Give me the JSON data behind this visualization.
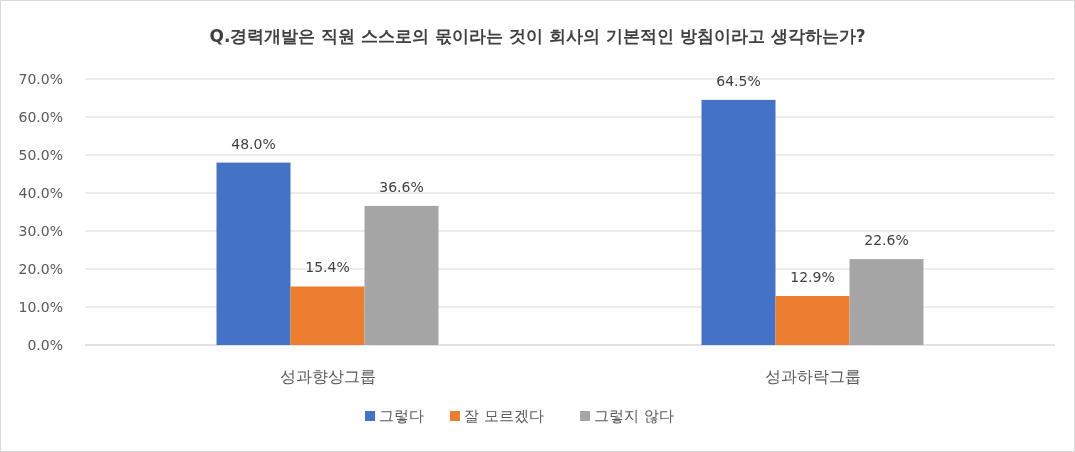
{
  "chart_data": {
    "type": "bar",
    "title": "Q.경력개발은 직원 스스로의 몫이라는 것이 회사의 기본적인 방침이라고 생각하는가?",
    "categories": [
      "성과향상그룹",
      "성과하락그룹"
    ],
    "series": [
      {
        "name": "그렇다",
        "color": "#4472c4",
        "values": [
          48.0,
          64.5
        ],
        "value_labels": [
          "48.0%",
          "64.5%"
        ]
      },
      {
        "name": "잘 모르겠다",
        "color": "#ed7d31",
        "values": [
          15.4,
          12.9
        ],
        "value_labels": [
          "15.4%",
          "12.9%"
        ]
      },
      {
        "name": "그렇지 않다",
        "color": "#a5a5a5",
        "values": [
          36.6,
          22.6
        ],
        "value_labels": [
          "36.6%",
          "22.6%"
        ]
      }
    ],
    "ylim": [
      0,
      70
    ],
    "yticks": [
      {
        "value": 0,
        "label": "0.0%"
      },
      {
        "value": 10,
        "label": "10.0%"
      },
      {
        "value": 20,
        "label": "20.0%"
      },
      {
        "value": 30,
        "label": "30.0%"
      },
      {
        "value": 40,
        "label": "40.0%"
      },
      {
        "value": 50,
        "label": "50.0%"
      },
      {
        "value": 60,
        "label": "60.0%"
      },
      {
        "value": 70,
        "label": "70.0%"
      }
    ],
    "grid": "y",
    "legend": "bottom"
  }
}
